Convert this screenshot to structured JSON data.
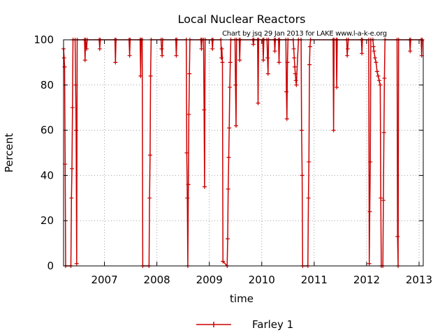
{
  "chart_data": {
    "type": "line",
    "title": "Local Nuclear Reactors",
    "subtitle": "Chart by jsq 29 Jan 2013 for LAKE www.l-a-k-e.org",
    "xlabel": "time",
    "ylabel": "Percent",
    "xlim": [
      2006.22,
      2013.08
    ],
    "ylim": [
      0,
      100
    ],
    "yticks": [
      0,
      20,
      40,
      60,
      80,
      100
    ],
    "xticks": [
      {
        "label": "2007",
        "value": 2007
      },
      {
        "label": "2008",
        "value": 2008
      },
      {
        "label": "2009",
        "value": 2009
      },
      {
        "label": "2010",
        "value": 2010
      },
      {
        "label": "2011",
        "value": 2011
      },
      {
        "label": "2012",
        "value": 2012
      },
      {
        "label": "2013",
        "value": 2013
      }
    ],
    "grid": true,
    "legend_position": "bottom-center",
    "series": [
      {
        "name": "Farley 1",
        "color": "#cc0000",
        "points": [
          [
            2006.22,
            96
          ],
          [
            2006.23,
            92
          ],
          [
            2006.24,
            88
          ],
          [
            2006.25,
            45
          ],
          [
            2006.26,
            0
          ],
          [
            2006.36,
            0
          ],
          [
            2006.37,
            30
          ],
          [
            2006.38,
            43
          ],
          [
            2006.39,
            70
          ],
          [
            2006.4,
            100
          ],
          [
            2006.44,
            100
          ],
          [
            2006.45,
            80
          ],
          [
            2006.46,
            60
          ],
          [
            2006.47,
            1
          ],
          [
            2006.48,
            100
          ],
          [
            2006.62,
            100
          ],
          [
            2006.63,
            91
          ],
          [
            2006.64,
            100
          ],
          [
            2006.66,
            96
          ],
          [
            2006.67,
            100
          ],
          [
            2006.9,
            100
          ],
          [
            2006.91,
            96
          ],
          [
            2006.92,
            100
          ],
          [
            2007.2,
            100
          ],
          [
            2007.21,
            90
          ],
          [
            2007.22,
            100
          ],
          [
            2007.47,
            100
          ],
          [
            2007.48,
            93
          ],
          [
            2007.49,
            100
          ],
          [
            2007.68,
            100
          ],
          [
            2007.69,
            84
          ],
          [
            2007.7,
            100
          ],
          [
            2007.72,
            100
          ],
          [
            2007.73,
            0
          ],
          [
            2007.85,
            0
          ],
          [
            2007.86,
            30
          ],
          [
            2007.87,
            49
          ],
          [
            2007.88,
            84
          ],
          [
            2007.89,
            100
          ],
          [
            2008.08,
            100
          ],
          [
            2008.09,
            96
          ],
          [
            2008.1,
            93
          ],
          [
            2008.11,
            100
          ],
          [
            2008.36,
            100
          ],
          [
            2008.37,
            93
          ],
          [
            2008.38,
            100
          ],
          [
            2008.56,
            100
          ],
          [
            2008.57,
            50
          ],
          [
            2008.58,
            30
          ],
          [
            2008.59,
            0
          ],
          [
            2008.6,
            36
          ],
          [
            2008.61,
            67
          ],
          [
            2008.62,
            85
          ],
          [
            2008.63,
            100
          ],
          [
            2008.84,
            100
          ],
          [
            2008.85,
            96
          ],
          [
            2008.86,
            100
          ],
          [
            2008.89,
            100
          ],
          [
            2008.9,
            69
          ],
          [
            2008.91,
            35
          ],
          [
            2008.92,
            100
          ],
          [
            2009.05,
            100
          ],
          [
            2009.06,
            96
          ],
          [
            2009.07,
            100
          ],
          [
            2009.22,
            100
          ],
          [
            2009.23,
            92
          ],
          [
            2009.24,
            96
          ],
          [
            2009.25,
            90
          ],
          [
            2009.26,
            2
          ],
          [
            2009.34,
            0
          ],
          [
            2009.35,
            12
          ],
          [
            2009.36,
            34
          ],
          [
            2009.37,
            48
          ],
          [
            2009.38,
            61
          ],
          [
            2009.39,
            79
          ],
          [
            2009.4,
            90
          ],
          [
            2009.41,
            100
          ],
          [
            2009.49,
            100
          ],
          [
            2009.5,
            80
          ],
          [
            2009.51,
            62
          ],
          [
            2009.52,
            100
          ],
          [
            2009.57,
            100
          ],
          [
            2009.58,
            91
          ],
          [
            2009.59,
            100
          ],
          [
            2009.83,
            100
          ],
          [
            2009.84,
            98
          ],
          [
            2009.85,
            100
          ],
          [
            2009.92,
            100
          ],
          [
            2009.93,
            72
          ],
          [
            2009.94,
            100
          ],
          [
            2010.02,
            100
          ],
          [
            2010.03,
            91
          ],
          [
            2010.04,
            100
          ],
          [
            2010.1,
            100
          ],
          [
            2010.11,
            92
          ],
          [
            2010.12,
            85
          ],
          [
            2010.13,
            100
          ],
          [
            2010.24,
            100
          ],
          [
            2010.25,
            95
          ],
          [
            2010.26,
            100
          ],
          [
            2010.32,
            100
          ],
          [
            2010.33,
            90
          ],
          [
            2010.34,
            100
          ],
          [
            2010.46,
            100
          ],
          [
            2010.47,
            77
          ],
          [
            2010.48,
            65
          ],
          [
            2010.49,
            90
          ],
          [
            2010.5,
            100
          ],
          [
            2010.6,
            100
          ],
          [
            2010.61,
            96
          ],
          [
            2010.62,
            92
          ],
          [
            2010.63,
            88
          ],
          [
            2010.64,
            85
          ],
          [
            2010.65,
            82
          ],
          [
            2010.66,
            80
          ],
          [
            2010.7,
            100
          ],
          [
            2010.75,
            100
          ],
          [
            2010.76,
            60
          ],
          [
            2010.77,
            40
          ],
          [
            2010.78,
            0
          ],
          [
            2010.88,
            0
          ],
          [
            2010.89,
            30
          ],
          [
            2010.9,
            46
          ],
          [
            2010.91,
            89
          ],
          [
            2010.92,
            97
          ],
          [
            2010.93,
            100
          ],
          [
            2011.36,
            100
          ],
          [
            2011.37,
            60
          ],
          [
            2011.38,
            100
          ],
          [
            2011.42,
            100
          ],
          [
            2011.43,
            79
          ],
          [
            2011.44,
            100
          ],
          [
            2011.62,
            100
          ],
          [
            2011.63,
            93
          ],
          [
            2011.64,
            96
          ],
          [
            2011.65,
            100
          ],
          [
            2011.9,
            100
          ],
          [
            2011.91,
            94
          ],
          [
            2011.92,
            100
          ],
          [
            2012.04,
            100
          ],
          [
            2012.05,
            1
          ],
          [
            2012.06,
            24
          ],
          [
            2012.07,
            46
          ],
          [
            2012.08,
            100
          ],
          [
            2012.12,
            100
          ],
          [
            2012.13,
            97
          ],
          [
            2012.14,
            95
          ],
          [
            2012.16,
            92
          ],
          [
            2012.18,
            90
          ],
          [
            2012.2,
            86
          ],
          [
            2012.22,
            84
          ],
          [
            2012.24,
            82
          ],
          [
            2012.26,
            80
          ],
          [
            2012.27,
            30
          ],
          [
            2012.28,
            0
          ],
          [
            2012.31,
            0
          ],
          [
            2012.32,
            29
          ],
          [
            2012.33,
            59
          ],
          [
            2012.34,
            83
          ],
          [
            2012.35,
            100
          ],
          [
            2012.58,
            100
          ],
          [
            2012.59,
            13
          ],
          [
            2012.6,
            0
          ],
          [
            2012.61,
            100
          ],
          [
            2012.82,
            100
          ],
          [
            2012.83,
            95
          ],
          [
            2012.84,
            100
          ],
          [
            2013.04,
            100
          ],
          [
            2013.05,
            93
          ],
          [
            2013.06,
            100
          ]
        ]
      }
    ]
  }
}
